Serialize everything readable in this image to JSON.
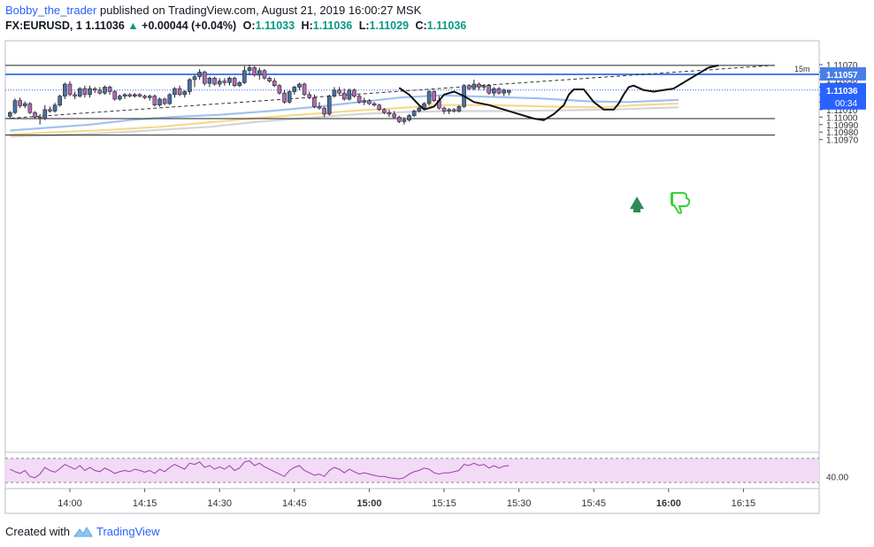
{
  "header": {
    "author": "Bobby_the_trader",
    "published": "published on TradingView.com, August 21, 2019 16:00:27 MSK",
    "symbol": "FX:EURUSD, 1",
    "last": "1.11036",
    "change": "+0.00044 (+0.04%)",
    "o_label": "O:",
    "o_value": "1.11033",
    "h_label": "H:",
    "h_value": "1.11036",
    "l_label": "L:",
    "l_value": "1.11029",
    "c_label": "C:",
    "c_value": "1.11036"
  },
  "footer": {
    "created": "Created with",
    "brand": "TradingView"
  },
  "colors": {
    "bull": "#4a6fa5",
    "bear": "#b069b8",
    "wick": "#222222",
    "ma_fast": "#9fc3ec",
    "ma_mid": "#f5d98c",
    "ma_slow": "#d5d5d5",
    "hline_blue": "#4a7ee6",
    "rsi_line": "#a03cab",
    "rsi_band": "#f1dbf5",
    "price_tag": "#2962ff",
    "arrow_green": "#2e8b57"
  },
  "chart_data": {
    "type": "candlestick",
    "interval": "1m",
    "yaxis": {
      "min": 1.10965,
      "max": 1.11075,
      "ticks": [
        "1.11070",
        "1.11060",
        "1.11050",
        "1.11040",
        "1.11030",
        "1.11020",
        "1.11010",
        "1.11000",
        "1.10990",
        "1.10980",
        "1.10970"
      ],
      "tick_values": [
        1.1107,
        1.1106,
        1.1105,
        1.1104,
        1.1103,
        1.1102,
        1.1101,
        1.11,
        1.1099,
        1.1098,
        1.1097
      ]
    },
    "xaxis": {
      "ticks": [
        "14:00",
        "14:15",
        "14:30",
        "14:45",
        "15:00",
        "15:15",
        "15:30",
        "15:45",
        "16:00",
        "16:15"
      ],
      "tick_minutes": [
        0,
        15,
        30,
        45,
        60,
        75,
        90,
        105,
        120,
        135
      ],
      "start_minute": -12
    },
    "price_tags": [
      {
        "label": "15m",
        "value": "1.11057",
        "price": 1.11057
      },
      {
        "label": "",
        "value": "1.11036",
        "price": 1.11036
      },
      {
        "label": "",
        "value": "00:34",
        "price": 1.11034
      }
    ],
    "horizontal_lines": [
      1.11069,
      1.10998,
      1.10976
    ],
    "blue_level": 1.11057,
    "trendline": {
      "from": [
        -13,
        1.10998
      ],
      "to": [
        141,
        1.11069
      ]
    },
    "candles": [
      [
        1.11001,
        1.11008,
        1.10998,
        1.11006
      ],
      [
        1.11006,
        1.11025,
        1.11004,
        1.11022
      ],
      [
        1.11022,
        1.11026,
        1.11012,
        1.11015
      ],
      [
        1.11015,
        1.11021,
        1.11012,
        1.11018
      ],
      [
        1.11018,
        1.1102,
        1.11004,
        1.11006
      ],
      [
        1.11006,
        1.11008,
        1.10998,
        1.11
      ],
      [
        1.11,
        1.11004,
        1.1099,
        1.10998
      ],
      [
        1.10998,
        1.11016,
        1.10996,
        1.1101
      ],
      [
        1.1101,
        1.11014,
        1.11006,
        1.11008
      ],
      [
        1.11008,
        1.11019,
        1.11006,
        1.11016
      ],
      [
        1.11016,
        1.1103,
        1.11014,
        1.11028
      ],
      [
        1.11028,
        1.11046,
        1.11024,
        1.11044
      ],
      [
        1.11044,
        1.11048,
        1.11028,
        1.1103
      ],
      [
        1.1103,
        1.11034,
        1.11024,
        1.11028
      ],
      [
        1.11028,
        1.1104,
        1.11026,
        1.11038
      ],
      [
        1.11038,
        1.11042,
        1.11026,
        1.1103
      ],
      [
        1.1103,
        1.11042,
        1.11026,
        1.11038
      ],
      [
        1.11038,
        1.1104,
        1.11032,
        1.11036
      ],
      [
        1.11036,
        1.1104,
        1.1103,
        1.11032
      ],
      [
        1.11032,
        1.11042,
        1.1103,
        1.1104
      ],
      [
        1.1104,
        1.11042,
        1.1103,
        1.11034
      ],
      [
        1.11034,
        1.11036,
        1.11022,
        1.11024
      ],
      [
        1.11024,
        1.1103,
        1.11022,
        1.11028
      ],
      [
        1.11028,
        1.11032,
        1.11024,
        1.1103
      ],
      [
        1.1103,
        1.11032,
        1.11026,
        1.11028
      ],
      [
        1.11028,
        1.11032,
        1.11026,
        1.1103
      ],
      [
        1.1103,
        1.11032,
        1.11026,
        1.11028
      ],
      [
        1.11028,
        1.1103,
        1.11024,
        1.11026
      ],
      [
        1.11026,
        1.1103,
        1.11022,
        1.11028
      ],
      [
        1.11028,
        1.1103,
        1.11014,
        1.11016
      ],
      [
        1.11016,
        1.11026,
        1.11014,
        1.11024
      ],
      [
        1.11024,
        1.11026,
        1.11016,
        1.11018
      ],
      [
        1.11018,
        1.11032,
        1.11016,
        1.1103
      ],
      [
        1.1103,
        1.1104,
        1.11026,
        1.11038
      ],
      [
        1.11038,
        1.11042,
        1.11028,
        1.1103
      ],
      [
        1.1103,
        1.11036,
        1.11026,
        1.11034
      ],
      [
        1.11034,
        1.11052,
        1.1103,
        1.1105
      ],
      [
        1.1105,
        1.11056,
        1.1104,
        1.11054
      ],
      [
        1.11054,
        1.11064,
        1.1105,
        1.1106
      ],
      [
        1.1106,
        1.11062,
        1.11042,
        1.11045
      ],
      [
        1.11045,
        1.11054,
        1.1104,
        1.11052
      ],
      [
        1.11052,
        1.11054,
        1.11042,
        1.11044
      ],
      [
        1.11044,
        1.11052,
        1.1104,
        1.11048
      ],
      [
        1.11048,
        1.11052,
        1.11042,
        1.11046
      ],
      [
        1.11046,
        1.11054,
        1.11042,
        1.11052
      ],
      [
        1.11052,
        1.11054,
        1.1104,
        1.11042
      ],
      [
        1.11042,
        1.11048,
        1.1104,
        1.11046
      ],
      [
        1.11046,
        1.11068,
        1.11044,
        1.11062
      ],
      [
        1.11062,
        1.1107,
        1.11056,
        1.11066
      ],
      [
        1.11066,
        1.11068,
        1.11054,
        1.11056
      ],
      [
        1.11056,
        1.11066,
        1.1105,
        1.11062
      ],
      [
        1.11062,
        1.11064,
        1.1105,
        1.11052
      ],
      [
        1.11052,
        1.11054,
        1.11046,
        1.11048
      ],
      [
        1.11048,
        1.11052,
        1.1104,
        1.11042
      ],
      [
        1.11042,
        1.11044,
        1.1103,
        1.11032
      ],
      [
        1.11032,
        1.11036,
        1.11018,
        1.1102
      ],
      [
        1.1102,
        1.11036,
        1.11018,
        1.11034
      ],
      [
        1.11034,
        1.11042,
        1.1103,
        1.1104
      ],
      [
        1.1104,
        1.11046,
        1.11036,
        1.11044
      ],
      [
        1.11044,
        1.11046,
        1.11028,
        1.1103
      ],
      [
        1.1103,
        1.11034,
        1.11024,
        1.11026
      ],
      [
        1.11026,
        1.1103,
        1.11012,
        1.11014
      ],
      [
        1.11014,
        1.1102,
        1.1101,
        1.11012
      ],
      [
        1.11012,
        1.11014,
        1.11,
        1.11004
      ],
      [
        1.11004,
        1.1103,
        1.11002,
        1.11028
      ],
      [
        1.11028,
        1.1104,
        1.11026,
        1.11036
      ],
      [
        1.11036,
        1.1104,
        1.1103,
        1.11032
      ],
      [
        1.11032,
        1.11038,
        1.11022,
        1.11024
      ],
      [
        1.11024,
        1.11038,
        1.11022,
        1.11036
      ],
      [
        1.11036,
        1.11038,
        1.11026,
        1.11028
      ],
      [
        1.11028,
        1.1103,
        1.11018,
        1.1102
      ],
      [
        1.1102,
        1.11026,
        1.11016,
        1.11022
      ],
      [
        1.11022,
        1.11024,
        1.11016,
        1.11018
      ],
      [
        1.11018,
        1.1102,
        1.11014,
        1.11016
      ],
      [
        1.11016,
        1.11018,
        1.11008,
        1.1101
      ],
      [
        1.1101,
        1.11012,
        1.11004,
        1.11006
      ],
      [
        1.11006,
        1.1101,
        1.11,
        1.11004
      ],
      [
        1.11004,
        1.11008,
        1.10998,
        1.11
      ],
      [
        1.11,
        1.11002,
        1.10992,
        1.10994
      ],
      [
        1.10994,
        1.11,
        1.1099,
        1.10996
      ],
      [
        1.10996,
        1.11004,
        1.10994,
        1.11002
      ],
      [
        1.11002,
        1.1101,
        1.11,
        1.11008
      ],
      [
        1.11008,
        1.11014,
        1.11006,
        1.11012
      ],
      [
        1.11012,
        1.1102,
        1.1101,
        1.11018
      ],
      [
        1.11018,
        1.11036,
        1.11016,
        1.11034
      ],
      [
        1.11034,
        1.11036,
        1.1102,
        1.11022
      ],
      [
        1.11022,
        1.11028,
        1.1101,
        1.11012
      ],
      [
        1.11012,
        1.11014,
        1.11004,
        1.11008
      ],
      [
        1.11008,
        1.11012,
        1.11004,
        1.1101
      ],
      [
        1.1101,
        1.11012,
        1.11006,
        1.11008
      ],
      [
        1.11008,
        1.11016,
        1.11006,
        1.11014
      ],
      [
        1.11014,
        1.11044,
        1.11012,
        1.11042
      ],
      [
        1.11042,
        1.11044,
        1.11036,
        1.11038
      ],
      [
        1.11038,
        1.1105,
        1.11036,
        1.11044
      ],
      [
        1.11044,
        1.11046,
        1.11036,
        1.1104
      ],
      [
        1.1104,
        1.11044,
        1.11036,
        1.11042
      ],
      [
        1.11042,
        1.11044,
        1.1103,
        1.11032
      ],
      [
        1.11032,
        1.1104,
        1.11028,
        1.11038
      ],
      [
        1.11038,
        1.1104,
        1.1103,
        1.11032
      ],
      [
        1.11032,
        1.11038,
        1.11028,
        1.11036
      ],
      [
        1.11033,
        1.11036,
        1.11029,
        1.11036
      ]
    ],
    "ma_fast": [
      [
        -12,
        1.10982
      ],
      [
        -4,
        1.10986
      ],
      [
        4,
        1.1099
      ],
      [
        12,
        1.10996
      ],
      [
        20,
        1.11
      ],
      [
        30,
        1.11003
      ],
      [
        40,
        1.11008
      ],
      [
        50,
        1.11014
      ],
      [
        58,
        1.1102
      ],
      [
        66,
        1.11026
      ],
      [
        74,
        1.11029
      ],
      [
        84,
        1.11027
      ],
      [
        94,
        1.11025
      ],
      [
        104,
        1.11021
      ],
      [
        112,
        1.1102
      ],
      [
        122,
        1.11023
      ]
    ],
    "ma_mid": [
      [
        -12,
        1.10977
      ],
      [
        -2,
        1.1098
      ],
      [
        8,
        1.10983
      ],
      [
        18,
        1.10987
      ],
      [
        28,
        1.10993
      ],
      [
        38,
        1.10999
      ],
      [
        48,
        1.11004
      ],
      [
        58,
        1.11009
      ],
      [
        66,
        1.11012
      ],
      [
        74,
        1.11016
      ],
      [
        84,
        1.11016
      ],
      [
        96,
        1.11014
      ],
      [
        106,
        1.11013
      ],
      [
        114,
        1.11016
      ],
      [
        122,
        1.11018
      ]
    ],
    "ma_slow": [
      [
        -12,
        1.10974
      ],
      [
        -2,
        1.10976
      ],
      [
        8,
        1.10979
      ],
      [
        18,
        1.10983
      ],
      [
        28,
        1.10987
      ],
      [
        38,
        1.10994
      ],
      [
        48,
        1.10999
      ],
      [
        58,
        1.11004
      ],
      [
        68,
        1.11007
      ],
      [
        78,
        1.11008
      ],
      [
        88,
        1.11008
      ],
      [
        98,
        1.11009
      ],
      [
        108,
        1.1101
      ],
      [
        122,
        1.11013
      ]
    ],
    "forecast_path": [
      [
        66,
        1.11039
      ],
      [
        68,
        1.1103
      ],
      [
        70,
        1.11016
      ],
      [
        71,
        1.1101
      ],
      [
        73,
        1.11014
      ],
      [
        75,
        1.1103
      ],
      [
        77,
        1.11034
      ],
      [
        79,
        1.11028
      ],
      [
        81,
        1.1102
      ],
      [
        84,
        1.11016
      ],
      [
        87,
        1.1101
      ],
      [
        90,
        1.11004
      ],
      [
        93,
        1.10998
      ],
      [
        95,
        1.10996
      ],
      [
        97,
        1.11004
      ],
      [
        99,
        1.11016
      ],
      [
        100,
        1.1103
      ],
      [
        101,
        1.11037
      ],
      [
        103,
        1.11037
      ],
      [
        105,
        1.1102
      ],
      [
        107,
        1.1101
      ],
      [
        109,
        1.1101
      ],
      [
        110,
        1.11018
      ],
      [
        111,
        1.1103
      ],
      [
        112,
        1.1104
      ],
      [
        113,
        1.11042
      ],
      [
        115,
        1.11036
      ],
      [
        117,
        1.11034
      ],
      [
        119,
        1.11036
      ],
      [
        121,
        1.11038
      ],
      [
        124,
        1.1105
      ],
      [
        126,
        1.11058
      ],
      [
        128,
        1.11066
      ]
    ],
    "rsi": {
      "label": "40.00",
      "band": [
        30,
        70
      ],
      "values": [
        52,
        48,
        45,
        50,
        40,
        38,
        44,
        55,
        50,
        47,
        53,
        60,
        56,
        52,
        58,
        50,
        55,
        50,
        48,
        54,
        50,
        45,
        48,
        50,
        48,
        52,
        50,
        47,
        50,
        45,
        52,
        48,
        55,
        60,
        56,
        52,
        62,
        60,
        64,
        55,
        58,
        52,
        56,
        52,
        58,
        50,
        54,
        64,
        66,
        58,
        62,
        56,
        52,
        48,
        44,
        40,
        50,
        55,
        58,
        50,
        46,
        42,
        44,
        40,
        50,
        55,
        52,
        46,
        52,
        48,
        44,
        46,
        44,
        42,
        40,
        40,
        38,
        37,
        36,
        38,
        44,
        48,
        50,
        54,
        52,
        46,
        44,
        46,
        46,
        48,
        50,
        60,
        58,
        62,
        58,
        60,
        54,
        58,
        54,
        57,
        58
      ]
    }
  }
}
